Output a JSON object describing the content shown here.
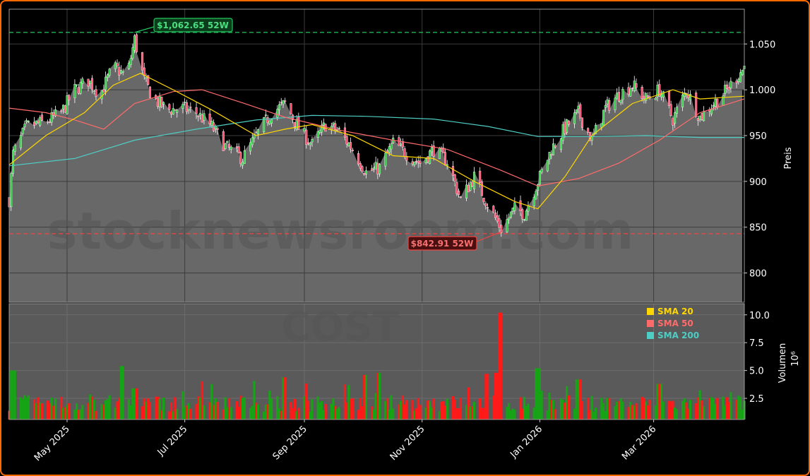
{
  "watermark": {
    "site": "stocknewsroom.com",
    "ticker": "COST"
  },
  "legend": [
    {
      "label": "SMA 20",
      "color": "#ffd700"
    },
    {
      "label": "SMA 50",
      "color": "#ff6b6b"
    },
    {
      "label": "SMA 200",
      "color": "#4ecdc4"
    }
  ],
  "annotations": {
    "high": {
      "label": "$1,062.65 52W",
      "value": 1062.65,
      "color": "#22c55e"
    },
    "low": {
      "label": "$842.91 52W",
      "value": 842.91,
      "color": "#ef4444"
    }
  },
  "chart_data": [
    {
      "type": "candlestick",
      "ylabel": "Preis",
      "ylim": [
        768,
        1088
      ],
      "yticks": [
        800,
        850,
        900,
        950,
        1000,
        1050
      ],
      "ytick_labels": [
        "800",
        "850",
        "900",
        "950",
        "1.000",
        "1.050"
      ],
      "xticks": [
        "2025-05-01",
        "2025-07-01",
        "2025-09-01",
        "2025-11-01",
        "2026-01-01",
        "2026-03-01"
      ],
      "xtick_labels": [
        "May 2025",
        "Jul 2025",
        "Sep 2025",
        "Nov 2025",
        "Jan 2026",
        "Mar 2026"
      ],
      "xlim": [
        "2025-04-01",
        "2026-04-17"
      ],
      "grid": true,
      "price_anchors": [
        [
          "2025-04-01",
          880
        ],
        [
          "2025-04-03",
          930
        ],
        [
          "2025-04-10",
          960
        ],
        [
          "2025-04-20",
          965
        ],
        [
          "2025-04-28",
          975
        ],
        [
          "2025-05-05",
          1000
        ],
        [
          "2025-05-12",
          1010
        ],
        [
          "2025-05-18",
          995
        ],
        [
          "2025-05-25",
          1025
        ],
        [
          "2025-06-01",
          1015
        ],
        [
          "2025-06-05",
          1055
        ],
        [
          "2025-06-10",
          1010
        ],
        [
          "2025-06-15",
          990
        ],
        [
          "2025-06-22",
          978
        ],
        [
          "2025-06-30",
          980
        ],
        [
          "2025-07-07",
          975
        ],
        [
          "2025-07-15",
          960
        ],
        [
          "2025-07-22",
          938
        ],
        [
          "2025-07-31",
          925
        ],
        [
          "2025-08-07",
          950
        ],
        [
          "2025-08-15",
          975
        ],
        [
          "2025-08-22",
          985
        ],
        [
          "2025-08-29",
          958
        ],
        [
          "2025-09-05",
          940
        ],
        [
          "2025-09-12",
          962
        ],
        [
          "2025-09-19",
          955
        ],
        [
          "2025-09-26",
          935
        ],
        [
          "2025-10-03",
          910
        ],
        [
          "2025-10-10",
          915
        ],
        [
          "2025-10-17",
          942
        ],
        [
          "2025-10-24",
          930
        ],
        [
          "2025-10-31",
          920
        ],
        [
          "2025-11-07",
          935
        ],
        [
          "2025-11-14",
          922
        ],
        [
          "2025-11-21",
          880
        ],
        [
          "2025-11-28",
          905
        ],
        [
          "2025-12-05",
          875
        ],
        [
          "2025-12-12",
          848
        ],
        [
          "2025-12-19",
          870
        ],
        [
          "2025-12-24",
          865
        ],
        [
          "2025-12-31",
          900
        ],
        [
          "2026-01-07",
          935
        ],
        [
          "2026-01-14",
          958
        ],
        [
          "2026-01-21",
          975
        ],
        [
          "2026-01-28",
          945
        ],
        [
          "2026-02-04",
          980
        ],
        [
          "2026-02-11",
          995
        ],
        [
          "2026-02-18",
          1005
        ],
        [
          "2026-02-25",
          990
        ],
        [
          "2026-03-04",
          1000
        ],
        [
          "2026-03-11",
          968
        ],
        [
          "2026-03-18",
          1000
        ],
        [
          "2026-03-25",
          970
        ],
        [
          "2026-04-01",
          985
        ],
        [
          "2026-04-08",
          1000
        ],
        [
          "2026-04-17",
          1025
        ]
      ],
      "sma20": [
        [
          "2025-04-01",
          918
        ],
        [
          "2025-04-20",
          950
        ],
        [
          "2025-05-10",
          975
        ],
        [
          "2025-05-25",
          1005
        ],
        [
          "2025-06-08",
          1018
        ],
        [
          "2025-06-25",
          1000
        ],
        [
          "2025-07-15",
          978
        ],
        [
          "2025-08-07",
          950
        ],
        [
          "2025-08-22",
          957
        ],
        [
          "2025-09-05",
          962
        ],
        [
          "2025-09-26",
          950
        ],
        [
          "2025-10-17",
          928
        ],
        [
          "2025-11-07",
          925
        ],
        [
          "2025-11-28",
          900
        ],
        [
          "2025-12-19",
          878
        ],
        [
          "2025-12-31",
          870
        ],
        [
          "2026-01-14",
          905
        ],
        [
          "2026-01-28",
          950
        ],
        [
          "2026-02-18",
          985
        ],
        [
          "2026-03-11",
          1000
        ],
        [
          "2026-03-25",
          990
        ],
        [
          "2026-04-17",
          993
        ]
      ],
      "sma50": [
        [
          "2025-04-01",
          980
        ],
        [
          "2025-04-20",
          975
        ],
        [
          "2025-05-05",
          967
        ],
        [
          "2025-05-20",
          957
        ],
        [
          "2025-06-05",
          985
        ],
        [
          "2025-06-25",
          998
        ],
        [
          "2025-07-10",
          1000
        ],
        [
          "2025-08-01",
          985
        ],
        [
          "2025-08-22",
          970
        ],
        [
          "2025-09-19",
          956
        ],
        [
          "2025-10-17",
          945
        ],
        [
          "2025-11-14",
          935
        ],
        [
          "2025-12-12",
          912
        ],
        [
          "2025-12-31",
          895
        ],
        [
          "2026-01-21",
          903
        ],
        [
          "2026-02-11",
          920
        ],
        [
          "2026-03-04",
          945
        ],
        [
          "2026-03-25",
          975
        ],
        [
          "2026-04-17",
          990
        ]
      ],
      "sma200": [
        [
          "2025-04-01",
          917
        ],
        [
          "2025-05-05",
          925
        ],
        [
          "2025-06-05",
          945
        ],
        [
          "2025-07-07",
          957
        ],
        [
          "2025-08-07",
          967
        ],
        [
          "2025-09-05",
          972
        ],
        [
          "2025-10-03",
          971
        ],
        [
          "2025-11-07",
          968
        ],
        [
          "2025-12-05",
          960
        ],
        [
          "2025-12-31",
          949
        ],
        [
          "2026-01-28",
          949
        ],
        [
          "2026-02-25",
          950
        ],
        [
          "2026-03-25",
          948
        ],
        [
          "2026-04-17",
          948
        ]
      ]
    },
    {
      "type": "bar",
      "ylabel": "Volumen",
      "yunit": "10⁶",
      "ylim": [
        0.6,
        11.0
      ],
      "yticks": [
        2.5,
        5.0,
        7.5,
        10.0
      ],
      "ytick_labels": [
        "2.5",
        "5.0",
        "7.5",
        "10.0"
      ],
      "xlim": [
        "2025-04-01",
        "2026-04-17"
      ],
      "grid": true,
      "peaks": [
        [
          "2025-04-03",
          5.0
        ],
        [
          "2025-05-30",
          5.4
        ],
        [
          "2025-06-05",
          3.4
        ],
        [
          "2025-08-22",
          4.4
        ],
        [
          "2025-10-03",
          4.6
        ],
        [
          "2025-10-10",
          4.8
        ],
        [
          "2025-12-05",
          4.7
        ],
        [
          "2025-12-10",
          4.8
        ],
        [
          "2025-12-12",
          10.2
        ],
        [
          "2025-12-31",
          5.2
        ],
        [
          "2026-01-21",
          4.2
        ],
        [
          "2026-03-04",
          3.8
        ]
      ]
    }
  ]
}
